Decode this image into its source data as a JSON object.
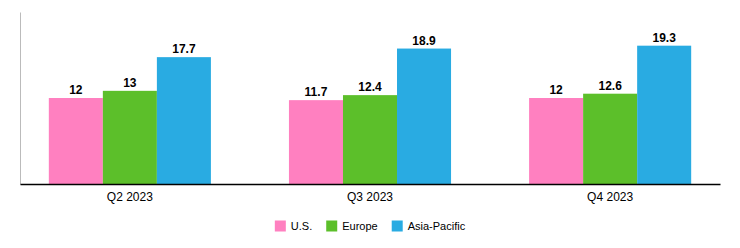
{
  "chart_data": {
    "type": "bar",
    "categories": [
      "Q2 2023",
      "Q3 2023",
      "Q4 2023"
    ],
    "series": [
      {
        "name": "U.S.",
        "color": "#FF80C0",
        "values": [
          12,
          11.7,
          12
        ]
      },
      {
        "name": "Europe",
        "color": "#5CBF2A",
        "values": [
          13,
          12.4,
          12.6
        ]
      },
      {
        "name": "Asia-Pacific",
        "color": "#29ABE2",
        "values": [
          17.7,
          18.9,
          19.3
        ]
      }
    ],
    "ylim": [
      0,
      24
    ],
    "data_labels": true,
    "tick_labels": "x",
    "legend": "bottom",
    "grid": false
  }
}
